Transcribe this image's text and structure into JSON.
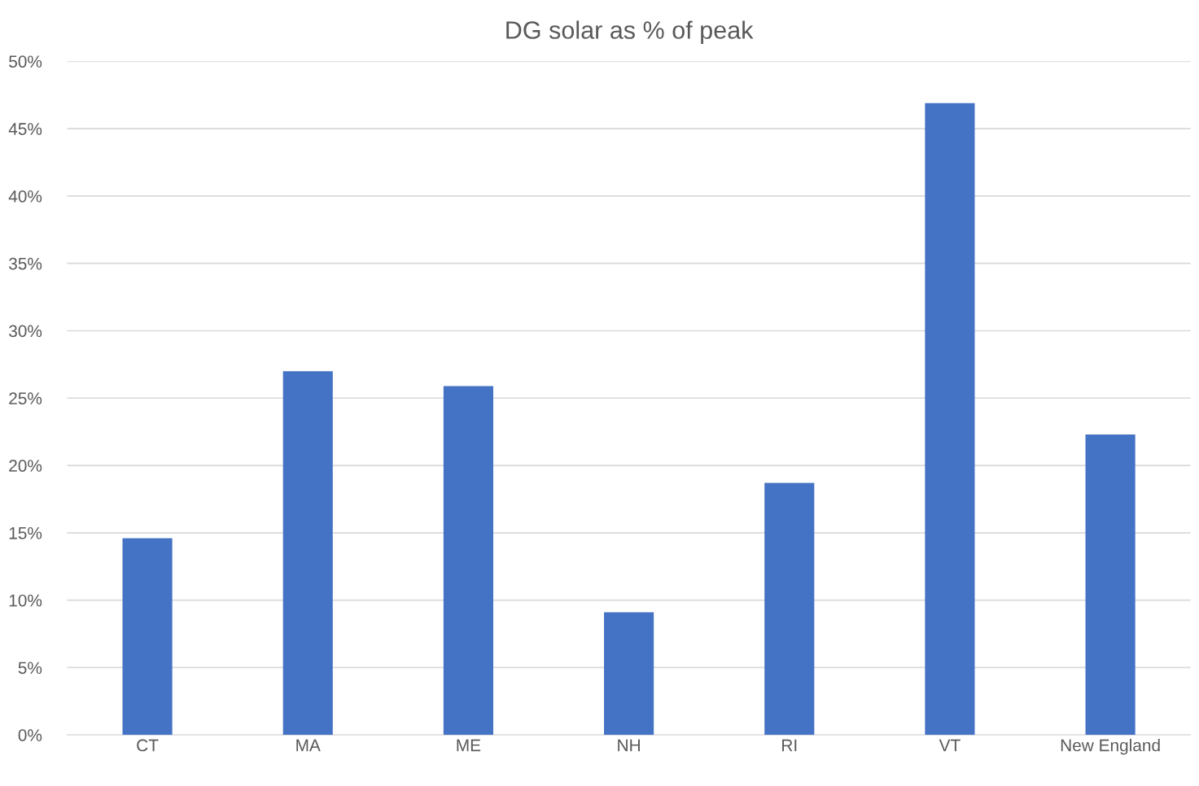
{
  "chart_data": {
    "type": "bar",
    "title": "DG solar as % of peak",
    "categories": [
      "CT",
      "MA",
      "ME",
      "NH",
      "RI",
      "VT",
      "New England"
    ],
    "values": [
      14.6,
      27.0,
      25.9,
      9.1,
      18.7,
      46.9,
      22.3
    ],
    "color": "#4472c4",
    "ylim": [
      0,
      50
    ],
    "yticks": [
      {
        "value": 0,
        "label": "0%"
      },
      {
        "value": 5,
        "label": "5%"
      },
      {
        "value": 10,
        "label": "10%"
      },
      {
        "value": 15,
        "label": "15%"
      },
      {
        "value": 20,
        "label": "20%"
      },
      {
        "value": 25,
        "label": "25%"
      },
      {
        "value": 30,
        "label": "30%"
      },
      {
        "value": 35,
        "label": "35%"
      },
      {
        "value": 40,
        "label": "40%"
      },
      {
        "value": 45,
        "label": "45%"
      },
      {
        "value": 50,
        "label": "50%"
      }
    ],
    "grid": "y",
    "legend": false
  }
}
